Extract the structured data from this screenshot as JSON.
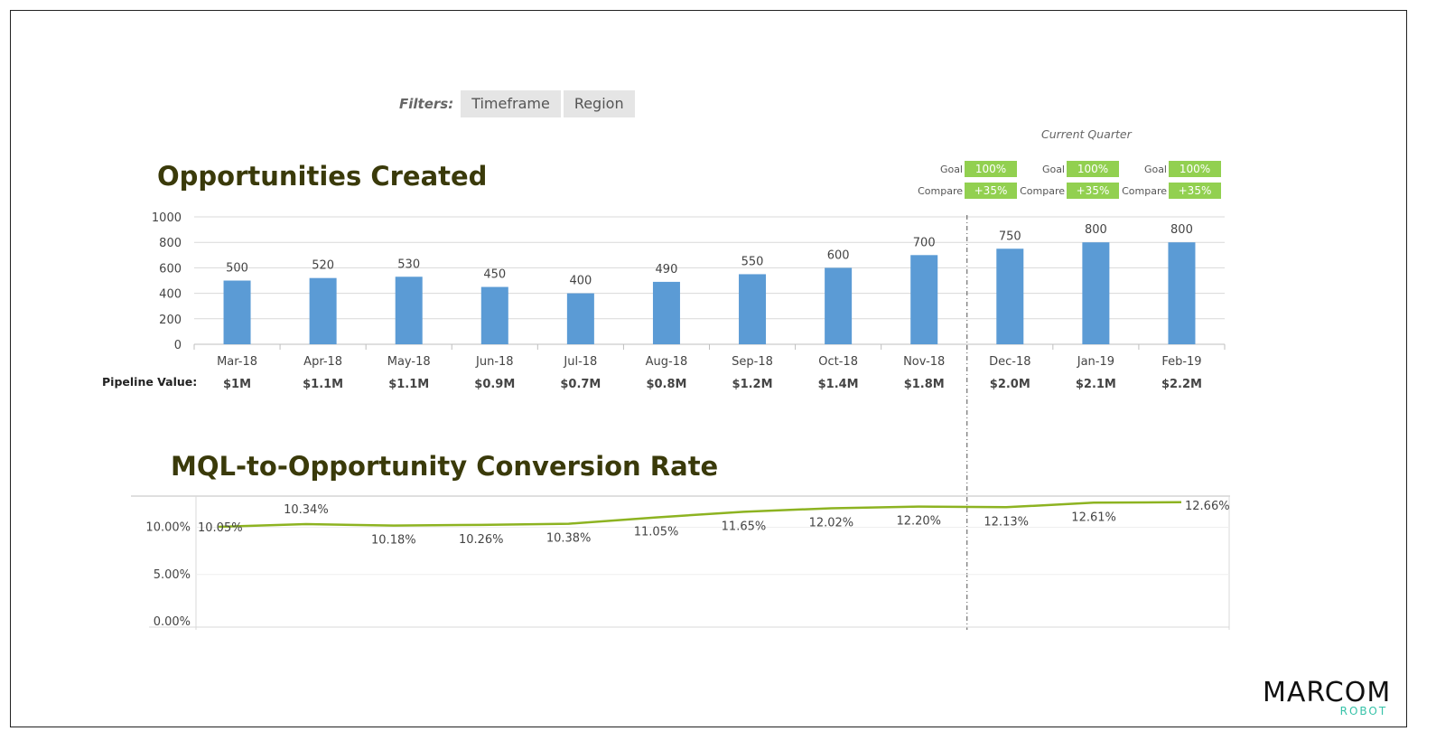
{
  "filters": {
    "label": "Filters:",
    "buttons": [
      "Timeframe",
      "Region"
    ]
  },
  "current_quarter": "Current Quarter",
  "kpi_boxes": [
    {
      "goal_label": "Goal",
      "goal_value": "100%",
      "compare_label": "Compare",
      "compare_value": "+35%"
    },
    {
      "goal_label": "Goal",
      "goal_value": "100%",
      "compare_label": "Compare",
      "compare_value": "+35%"
    },
    {
      "goal_label": "Goal",
      "goal_value": "100%",
      "compare_label": "Compare",
      "compare_value": "+35%"
    }
  ],
  "colors": {
    "bar": "#5b9bd5",
    "line": "#8db321",
    "kpi": "#92d050",
    "title": "#3a3a0a"
  },
  "pipeline_label": "Pipeline Value:",
  "logo": {
    "main": "MARCOM",
    "sub": "ROBOT"
  },
  "chart_data": [
    {
      "type": "bar",
      "title": "Opportunities Created",
      "categories": [
        "Mar-18",
        "Apr-18",
        "May-18",
        "Jun-18",
        "Jul-18",
        "Aug-18",
        "Sep-18",
        "Oct-18",
        "Nov-18",
        "Dec-18",
        "Jan-19",
        "Feb-19"
      ],
      "values": [
        500,
        520,
        530,
        450,
        400,
        490,
        550,
        600,
        700,
        750,
        800,
        800
      ],
      "pipeline_values": [
        "$1M",
        "$1.1M",
        "$1.1M",
        "$0.9M",
        "$0.7M",
        "$0.8M",
        "$1.2M",
        "$1.4M",
        "$1.8M",
        "$2.0M",
        "$2.1M",
        "$2.2M"
      ],
      "ylim": [
        0,
        1000
      ],
      "yticks": [
        0,
        200,
        400,
        600,
        800,
        1000
      ],
      "grid": true
    },
    {
      "type": "line",
      "title": "MQL-to-Opportunity Conversion Rate",
      "categories": [
        "Mar-18",
        "Apr-18",
        "May-18",
        "Jun-18",
        "Jul-18",
        "Aug-18",
        "Sep-18",
        "Oct-18",
        "Nov-18",
        "Dec-18",
        "Jan-19",
        "Feb-19"
      ],
      "values": [
        10.05,
        10.34,
        10.18,
        10.26,
        10.38,
        11.05,
        11.65,
        12.02,
        12.2,
        12.13,
        12.61,
        12.66
      ],
      "labels": [
        "10.05%",
        "10.34%",
        "10.18%",
        "10.26%",
        "10.38%",
        "11.05%",
        "11.65%",
        "12.02%",
        "12.20%",
        "12.13%",
        "12.61%",
        "12.66%"
      ],
      "yticks": [
        "0.00%",
        "5.00%",
        "10.00%"
      ],
      "ytick_values": [
        0,
        5,
        10
      ],
      "ylim": [
        0,
        13.5
      ],
      "grid": true
    }
  ]
}
